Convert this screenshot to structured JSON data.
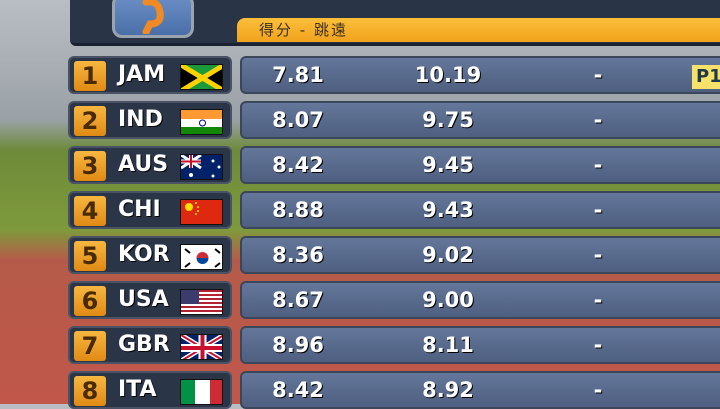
{
  "header": {
    "title": "得分 - 跳遠",
    "event_icon": "long-jump-athlete-icon"
  },
  "badge": "P1",
  "rows": [
    {
      "rank": "1",
      "country": "JAM",
      "flag": "jamaica",
      "score1": "7.81",
      "score2": "10.19",
      "score3": "-"
    },
    {
      "rank": "2",
      "country": "IND",
      "flag": "india",
      "score1": "8.07",
      "score2": "9.75",
      "score3": "-"
    },
    {
      "rank": "3",
      "country": "AUS",
      "flag": "australia",
      "score1": "8.42",
      "score2": "9.45",
      "score3": "-"
    },
    {
      "rank": "4",
      "country": "CHI",
      "flag": "china",
      "score1": "8.88",
      "score2": "9.43",
      "score3": "-"
    },
    {
      "rank": "5",
      "country": "KOR",
      "flag": "korea",
      "score1": "8.36",
      "score2": "9.02",
      "score3": "-"
    },
    {
      "rank": "6",
      "country": "USA",
      "flag": "usa",
      "score1": "8.67",
      "score2": "9.00",
      "score3": "-"
    },
    {
      "rank": "7",
      "country": "GBR",
      "flag": "uk",
      "score1": "8.96",
      "score2": "8.11",
      "score3": "-"
    },
    {
      "rank": "8",
      "country": "ITA",
      "flag": "italy",
      "score1": "8.42",
      "score2": "8.92",
      "score3": "-"
    }
  ]
}
